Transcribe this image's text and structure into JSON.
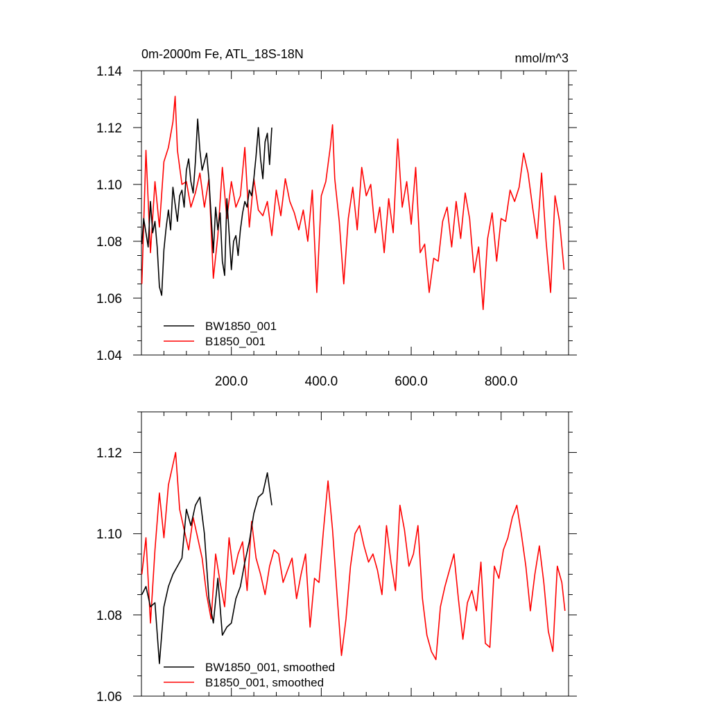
{
  "colors": {
    "BW1850_001": "#000000",
    "B1850_001": "#ff0000"
  },
  "chart_data": [
    {
      "type": "line",
      "title": "0m-2000m Fe, ATL_18S-18N",
      "units": "nmol/m^3",
      "xlim": [
        0,
        950
      ],
      "ylim": [
        1.04,
        1.14
      ],
      "xticks": [
        200,
        400,
        600,
        800
      ],
      "xtick_labels": [
        "200.0",
        "400.0",
        "600.0",
        "800.0"
      ],
      "yticks": [
        1.04,
        1.06,
        1.08,
        1.1,
        1.12,
        1.14
      ],
      "ytick_labels": [
        "1.04",
        "1.06",
        "1.08",
        "1.10",
        "1.12",
        "1.14"
      ],
      "legend": [
        "BW1850_001",
        "B1850_001"
      ],
      "legend_position": "bottom-left",
      "series": [
        {
          "name": "BW1850_001",
          "color": "#000000",
          "x": [
            1,
            5,
            10,
            15,
            20,
            25,
            30,
            35,
            40,
            45,
            50,
            55,
            60,
            65,
            70,
            75,
            80,
            85,
            90,
            95,
            100,
            105,
            110,
            115,
            120,
            125,
            130,
            135,
            140,
            145,
            150,
            155,
            160,
            165,
            170,
            175,
            180,
            185,
            190,
            195,
            200,
            205,
            210,
            215,
            220,
            225,
            230,
            235,
            240,
            245,
            250,
            255,
            260,
            265,
            270,
            275,
            280,
            285,
            290
          ],
          "values": [
            1.079,
            1.088,
            1.083,
            1.078,
            1.094,
            1.083,
            1.087,
            1.078,
            1.064,
            1.061,
            1.077,
            1.085,
            1.091,
            1.084,
            1.099,
            1.093,
            1.087,
            1.096,
            1.098,
            1.092,
            1.105,
            1.109,
            1.101,
            1.097,
            1.108,
            1.123,
            1.112,
            1.105,
            1.108,
            1.111,
            1.102,
            1.089,
            1.076,
            1.092,
            1.084,
            1.09,
            1.073,
            1.068,
            1.095,
            1.083,
            1.07,
            1.08,
            1.082,
            1.075,
            1.084,
            1.09,
            1.094,
            1.092,
            1.098,
            1.096,
            1.102,
            1.11,
            1.12,
            1.109,
            1.102,
            1.115,
            1.118,
            1.107,
            1.12
          ]
        },
        {
          "name": "B1850_001",
          "color": "#ff0000",
          "x": [
            1,
            10,
            20,
            30,
            40,
            50,
            60,
            70,
            75,
            80,
            90,
            100,
            110,
            120,
            130,
            140,
            150,
            160,
            170,
            180,
            190,
            200,
            210,
            220,
            230,
            240,
            250,
            260,
            270,
            280,
            290,
            300,
            310,
            320,
            330,
            340,
            350,
            360,
            370,
            380,
            390,
            400,
            410,
            420,
            425,
            430,
            440,
            450,
            460,
            470,
            480,
            490,
            500,
            510,
            520,
            530,
            540,
            550,
            560,
            570,
            580,
            590,
            600,
            610,
            620,
            630,
            640,
            650,
            660,
            670,
            680,
            690,
            700,
            710,
            720,
            730,
            740,
            750,
            760,
            770,
            780,
            790,
            800,
            810,
            820,
            830,
            840,
            850,
            860,
            870,
            880,
            890,
            900,
            910,
            920,
            930,
            940
          ],
          "values": [
            1.065,
            1.112,
            1.076,
            1.101,
            1.085,
            1.108,
            1.113,
            1.122,
            1.131,
            1.112,
            1.1,
            1.101,
            1.092,
            1.097,
            1.104,
            1.092,
            1.102,
            1.067,
            1.082,
            1.106,
            1.088,
            1.101,
            1.092,
            1.096,
            1.113,
            1.085,
            1.102,
            1.091,
            1.089,
            1.094,
            1.082,
            1.098,
            1.089,
            1.102,
            1.094,
            1.09,
            1.084,
            1.091,
            1.08,
            1.098,
            1.062,
            1.096,
            1.101,
            1.113,
            1.121,
            1.102,
            1.087,
            1.065,
            1.088,
            1.099,
            1.084,
            1.106,
            1.096,
            1.1,
            1.083,
            1.092,
            1.076,
            1.095,
            1.083,
            1.116,
            1.092,
            1.101,
            1.086,
            1.106,
            1.076,
            1.079,
            1.062,
            1.074,
            1.073,
            1.087,
            1.092,
            1.078,
            1.094,
            1.081,
            1.097,
            1.088,
            1.069,
            1.078,
            1.056,
            1.081,
            1.09,
            1.073,
            1.088,
            1.087,
            1.098,
            1.094,
            1.099,
            1.111,
            1.104,
            1.092,
            1.081,
            1.104,
            1.08,
            1.062,
            1.096,
            1.087,
            1.07
          ]
        }
      ]
    },
    {
      "type": "line",
      "xlim": [
        0,
        950
      ],
      "ylim": [
        1.06,
        1.13
      ],
      "xticks": [
        200,
        400,
        600,
        800
      ],
      "yticks": [
        1.06,
        1.08,
        1.1,
        1.12
      ],
      "ytick_labels": [
        "1.06",
        "1.08",
        "1.10",
        "1.12"
      ],
      "legend": [
        "BW1850_001, smoothed",
        "B1850_001, smoothed"
      ],
      "legend_position": "bottom-left",
      "series": [
        {
          "name": "BW1850_001, smoothed",
          "color": "#000000",
          "x": [
            1,
            10,
            20,
            30,
            40,
            50,
            60,
            70,
            80,
            90,
            100,
            110,
            120,
            130,
            140,
            150,
            160,
            170,
            180,
            190,
            200,
            210,
            220,
            230,
            240,
            250,
            260,
            270,
            280,
            290
          ],
          "values": [
            1.085,
            1.087,
            1.082,
            1.083,
            1.068,
            1.082,
            1.087,
            1.09,
            1.092,
            1.094,
            1.106,
            1.102,
            1.107,
            1.109,
            1.1,
            1.084,
            1.078,
            1.089,
            1.075,
            1.077,
            1.078,
            1.084,
            1.087,
            1.093,
            1.098,
            1.105,
            1.109,
            1.11,
            1.115,
            1.107
          ]
        },
        {
          "name": "B1850_001, smoothed",
          "color": "#ff0000",
          "x": [
            1,
            10,
            20,
            30,
            40,
            50,
            60,
            70,
            76,
            85,
            95,
            105,
            115,
            125,
            135,
            145,
            155,
            165,
            175,
            185,
            195,
            205,
            215,
            225,
            235,
            245,
            255,
            265,
            275,
            285,
            295,
            305,
            315,
            325,
            335,
            345,
            355,
            365,
            375,
            385,
            395,
            405,
            415,
            425,
            435,
            445,
            455,
            465,
            475,
            485,
            495,
            505,
            515,
            525,
            535,
            545,
            555,
            565,
            575,
            585,
            595,
            605,
            615,
            625,
            635,
            645,
            655,
            665,
            675,
            685,
            695,
            705,
            715,
            725,
            735,
            745,
            755,
            765,
            775,
            785,
            795,
            805,
            815,
            825,
            835,
            845,
            855,
            865,
            875,
            885,
            895,
            905,
            915,
            925,
            935,
            942
          ],
          "values": [
            1.09,
            1.099,
            1.078,
            1.096,
            1.11,
            1.099,
            1.112,
            1.117,
            1.12,
            1.106,
            1.101,
            1.096,
            1.104,
            1.099,
            1.094,
            1.085,
            1.079,
            1.095,
            1.088,
            1.082,
            1.099,
            1.09,
            1.095,
            1.098,
            1.086,
            1.103,
            1.094,
            1.09,
            1.085,
            1.092,
            1.096,
            1.095,
            1.088,
            1.091,
            1.094,
            1.084,
            1.09,
            1.095,
            1.077,
            1.089,
            1.088,
            1.101,
            1.113,
            1.101,
            1.085,
            1.07,
            1.079,
            1.092,
            1.1,
            1.102,
            1.097,
            1.093,
            1.095,
            1.091,
            1.085,
            1.102,
            1.093,
            1.086,
            1.107,
            1.101,
            1.092,
            1.095,
            1.102,
            1.084,
            1.075,
            1.071,
            1.069,
            1.082,
            1.087,
            1.091,
            1.095,
            1.084,
            1.074,
            1.083,
            1.086,
            1.081,
            1.093,
            1.073,
            1.072,
            1.092,
            1.089,
            1.096,
            1.099,
            1.104,
            1.107,
            1.1,
            1.092,
            1.081,
            1.09,
            1.097,
            1.088,
            1.076,
            1.071,
            1.092,
            1.088,
            1.081
          ]
        }
      ]
    }
  ]
}
